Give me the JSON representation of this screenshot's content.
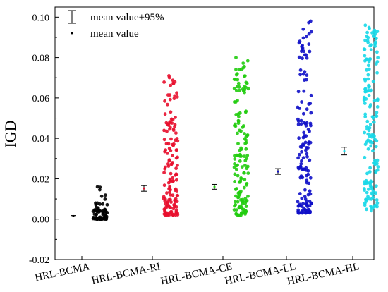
{
  "chart_data": {
    "type": "scatter",
    "title": "",
    "xlabel": "",
    "ylabel": "IGD",
    "ylim": [
      -0.02,
      0.105
    ],
    "yticks": [
      "-0.02",
      "0.00",
      "0.02",
      "0.04",
      "0.06",
      "0.08",
      "0.10"
    ],
    "yticks_values": [
      -0.02,
      0.0,
      0.02,
      0.04,
      0.06,
      0.08,
      0.1
    ],
    "categories": [
      "HRL-BCMA",
      "HRL-BCMA-RI",
      "HRL-BCMA-CE",
      "HRL-BCMA-LL",
      "HRL-BCMA-HL"
    ],
    "legend": {
      "position": "top-left",
      "items": [
        {
          "symbol": "errorbar",
          "label": "mean value±95%"
        },
        {
          "symbol": "dot",
          "label": "mean value"
        }
      ]
    },
    "grid": false,
    "series": [
      {
        "category": "HRL-BCMA",
        "color": "#000000",
        "mean": 0.0015,
        "ci": [
          0.0012,
          0.0018
        ],
        "min": 0.0,
        "max": 0.016,
        "dist": "low",
        "n": 70
      },
      {
        "category": "HRL-BCMA-RI",
        "color": "#e8102e",
        "mean": 0.0152,
        "ci": [
          0.0138,
          0.0166
        ],
        "min": 0.002,
        "max": 0.071,
        "dist": "mid",
        "n": 150
      },
      {
        "category": "HRL-BCMA-CE",
        "color": "#22cc10",
        "mean": 0.016,
        "ci": [
          0.0148,
          0.0172
        ],
        "min": 0.002,
        "max": 0.08,
        "dist": "mid",
        "n": 150
      },
      {
        "category": "HRL-BCMA-LL",
        "color": "#1010c8",
        "mean": 0.0236,
        "ci": [
          0.0222,
          0.025
        ],
        "min": 0.003,
        "max": 0.098,
        "dist": "mid",
        "n": 150
      },
      {
        "category": "HRL-BCMA-HL",
        "color": "#18d8e8",
        "mean": 0.0337,
        "ci": [
          0.0318,
          0.0356
        ],
        "min": 0.004,
        "max": 0.096,
        "dist": "wide",
        "n": 160
      }
    ]
  }
}
